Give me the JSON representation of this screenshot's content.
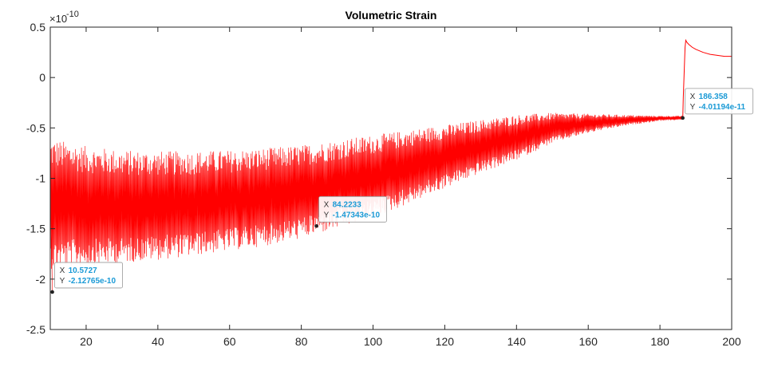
{
  "chart_data": {
    "type": "line",
    "title": "Volumetric Strain",
    "xlabel": "",
    "ylabel": "",
    "xlim": [
      10,
      200
    ],
    "ylim": [
      -2.5,
      0.5
    ],
    "y_exponent_label": "×10",
    "y_exponent": "-10",
    "y_scale_factor": 1e-10,
    "x_ticks": [
      20,
      40,
      60,
      80,
      100,
      120,
      140,
      160,
      180,
      200
    ],
    "y_ticks": [
      0.5,
      0,
      -0.5,
      -1,
      -1.5,
      -2,
      -2.5
    ],
    "y_tick_labels": [
      "0.5",
      "0",
      "-0.5",
      "-1",
      "-1.5",
      "-2",
      "-2.5"
    ],
    "grid": false,
    "series": [
      {
        "color": "#ff0000",
        "envelope_x": [
          10,
          20,
          30,
          40,
          50,
          60,
          70,
          80,
          90,
          100,
          110,
          120,
          130,
          140,
          150,
          160,
          170,
          180,
          186
        ],
        "envelope_upper": [
          -0.6,
          -0.68,
          -0.72,
          -0.73,
          -0.73,
          -0.72,
          -0.7,
          -0.67,
          -0.62,
          -0.57,
          -0.52,
          -0.47,
          -0.42,
          -0.37,
          -0.35,
          -0.36,
          -0.37,
          -0.38,
          -0.38
        ],
        "envelope_lower": [
          -1.9,
          -1.87,
          -1.84,
          -1.81,
          -1.77,
          -1.72,
          -1.67,
          -1.6,
          -1.5,
          -1.4,
          -1.25,
          -1.1,
          -0.95,
          -0.82,
          -0.65,
          -0.55,
          -0.48,
          -0.43,
          -0.42
        ],
        "tail_x": [
          186.36,
          186.5,
          186.8,
          187,
          187.2,
          187.5,
          188,
          189,
          190,
          192,
          194,
          196,
          198,
          200
        ],
        "tail_y": [
          -0.4012,
          -0.2,
          0.1,
          0.3,
          0.37,
          0.35,
          0.33,
          0.3,
          0.28,
          0.25,
          0.23,
          0.22,
          0.21,
          0.21
        ]
      }
    ],
    "data_tips": [
      {
        "x": 10.5727,
        "y": -2.12765e-10,
        "x_label": "X",
        "y_label": "Y",
        "x_text": "10.5727",
        "y_text": "-2.12765e-10"
      },
      {
        "x": 84.2233,
        "y": -1.47343e-10,
        "x_label": "X",
        "y_label": "Y",
        "x_text": "84.2233",
        "y_text": "-1.47343e-10"
      },
      {
        "x": 186.358,
        "y": -4.01194e-11,
        "x_label": "X",
        "y_label": "Y",
        "x_text": "186.358",
        "y_text": "-4.01194e-11"
      }
    ]
  }
}
